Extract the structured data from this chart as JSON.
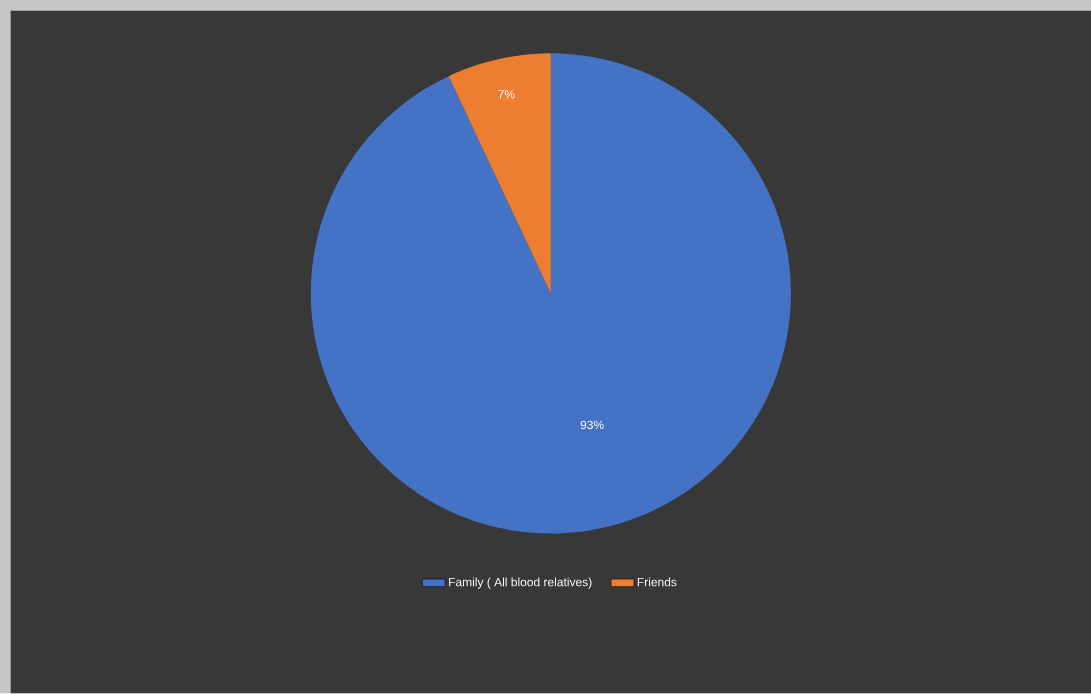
{
  "chart_data": {
    "type": "pie",
    "categories": [
      "Family ( All blood relatives)",
      "Friends"
    ],
    "values": [
      93,
      7
    ],
    "colors": [
      "#4472c4",
      "#ed7d31"
    ],
    "value_labels": [
      "93%",
      "7%"
    ],
    "legend": "bottom"
  }
}
